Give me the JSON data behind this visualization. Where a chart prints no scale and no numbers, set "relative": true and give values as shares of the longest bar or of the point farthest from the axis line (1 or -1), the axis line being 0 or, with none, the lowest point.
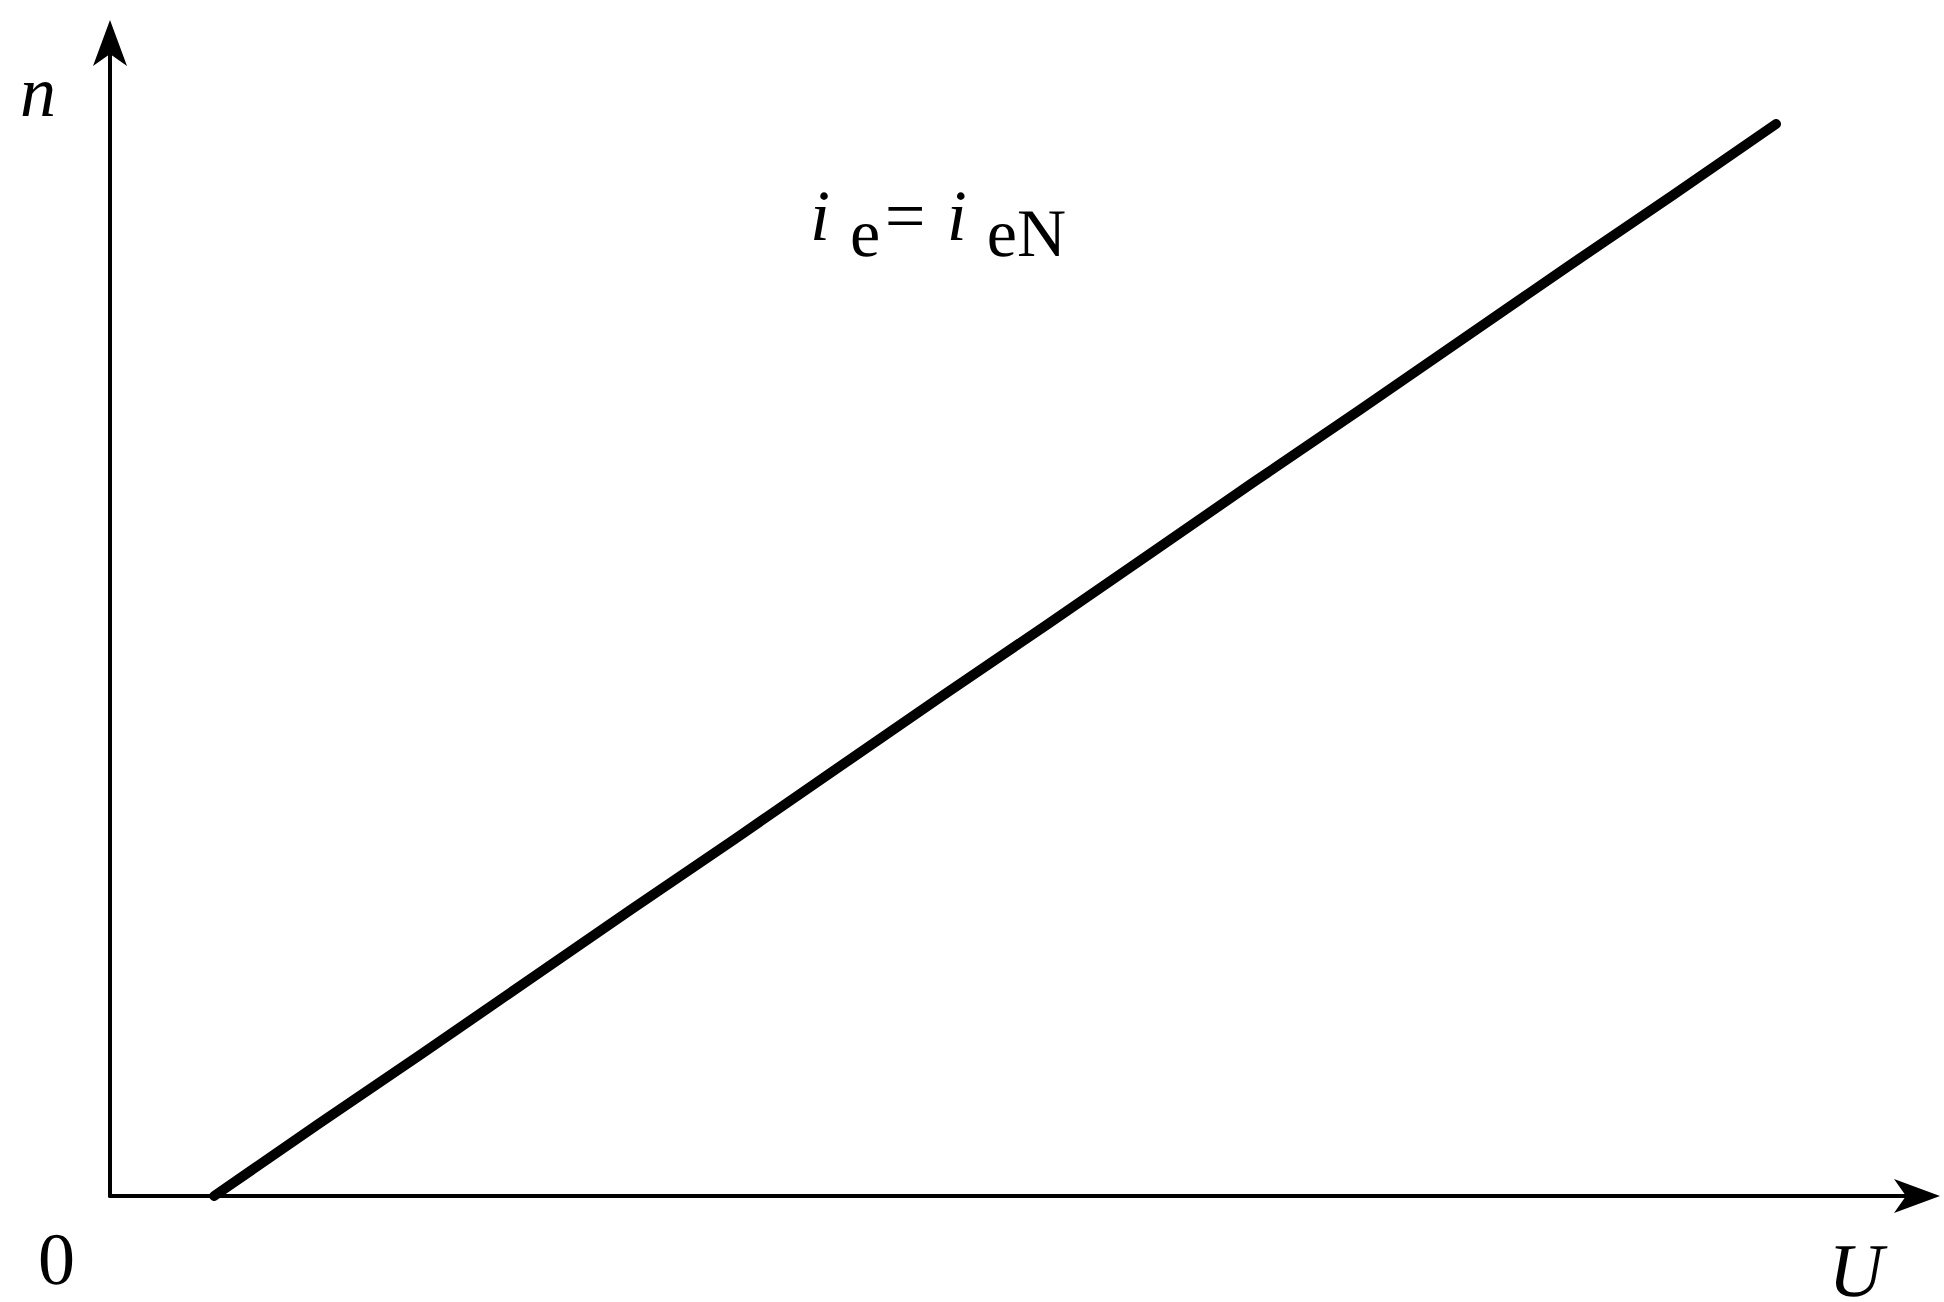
{
  "chart_data": {
    "type": "line",
    "relative": true,
    "xlabel": "U",
    "ylabel": "n",
    "annotations": [
      "i$_{e}$= i$_{eN}$",
      "0"
    ],
    "categories": [
      null,
      null,
      null,
      null,
      null,
      null,
      null,
      null,
      null,
      null,
      null,
      null,
      null,
      null,
      null,
      null,
      null
    ],
    "values": [
      null,
      0,
      0.067,
      0.133,
      0.2,
      0.267,
      0.333,
      0.4,
      0.467,
      0.533,
      0.6,
      0.667,
      0.733,
      0.8,
      0.867,
      0.933,
      1
    ],
    "color": "#000000"
  }
}
